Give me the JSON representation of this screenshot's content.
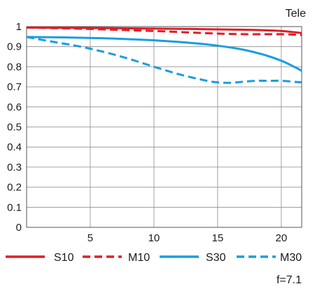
{
  "chart_data": {
    "type": "line",
    "title": "",
    "xlabel": "",
    "ylabel": "",
    "xlim": [
      0,
      21.6
    ],
    "ylim": [
      0,
      1
    ],
    "grid": true,
    "legend_placement": "bottom",
    "x_ticks": [
      5,
      10,
      15,
      20
    ],
    "x_tick_labels": [
      "5",
      "10",
      "15",
      "20"
    ],
    "y_ticks": [
      0,
      0.1,
      0.2,
      0.3,
      0.4,
      0.5,
      0.6,
      0.7,
      0.8,
      0.9,
      1
    ],
    "y_tick_labels": [
      "0",
      "0.1",
      "0.2",
      "0.3",
      "0.4",
      "0.5",
      "0.6",
      "0.7",
      "0.8",
      "0.9",
      "1"
    ],
    "annotations": {
      "top_right": "Tele",
      "bottom_right": "f=7.1"
    },
    "series": [
      {
        "name": "S10",
        "color": "#e01e25",
        "dash": "solid",
        "points": [
          [
            0,
            0.995
          ],
          [
            5,
            0.993
          ],
          [
            10,
            0.99
          ],
          [
            13,
            0.988
          ],
          [
            16,
            0.985
          ],
          [
            18,
            0.983
          ],
          [
            20,
            0.978
          ],
          [
            21,
            0.972
          ],
          [
            21.6,
            0.968
          ]
        ]
      },
      {
        "name": "M10",
        "color": "#e01e25",
        "dash": "dashed",
        "points": [
          [
            0,
            0.995
          ],
          [
            5,
            0.988
          ],
          [
            10,
            0.978
          ],
          [
            13,
            0.97
          ],
          [
            15,
            0.965
          ],
          [
            17,
            0.962
          ],
          [
            19,
            0.962
          ],
          [
            20,
            0.962
          ],
          [
            21,
            0.96
          ],
          [
            21.6,
            0.958
          ]
        ]
      },
      {
        "name": "S30",
        "color": "#1a9de0",
        "dash": "solid",
        "points": [
          [
            0,
            0.948
          ],
          [
            3,
            0.946
          ],
          [
            6,
            0.942
          ],
          [
            9,
            0.935
          ],
          [
            11,
            0.928
          ],
          [
            13,
            0.918
          ],
          [
            15,
            0.905
          ],
          [
            17,
            0.885
          ],
          [
            18.5,
            0.862
          ],
          [
            20,
            0.83
          ],
          [
            21,
            0.8
          ],
          [
            21.6,
            0.78
          ]
        ]
      },
      {
        "name": "M30",
        "color": "#1a9de0",
        "dash": "dashed",
        "points": [
          [
            0,
            0.948
          ],
          [
            2,
            0.925
          ],
          [
            4,
            0.903
          ],
          [
            6,
            0.875
          ],
          [
            8,
            0.84
          ],
          [
            10,
            0.8
          ],
          [
            12,
            0.762
          ],
          [
            14,
            0.732
          ],
          [
            15,
            0.722
          ],
          [
            16,
            0.72
          ],
          [
            17,
            0.725
          ],
          [
            18,
            0.73
          ],
          [
            19,
            0.73
          ],
          [
            20,
            0.73
          ],
          [
            21,
            0.725
          ],
          [
            21.6,
            0.722
          ]
        ]
      }
    ]
  }
}
